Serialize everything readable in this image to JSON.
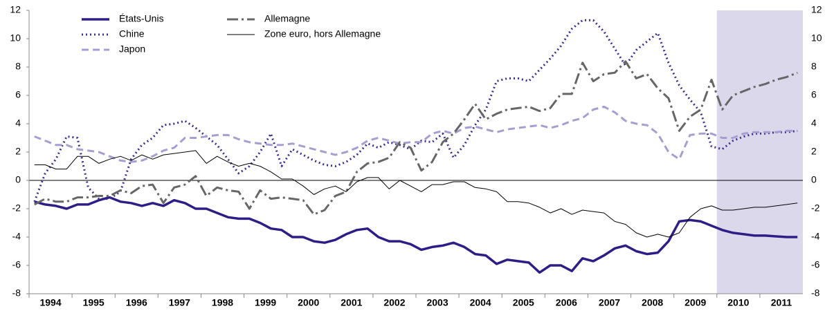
{
  "chart_data": {
    "type": "line",
    "categories": [
      "1994",
      "1995",
      "1996",
      "1997",
      "1998",
      "1999",
      "2000",
      "2001",
      "2002",
      "2003",
      "2004",
      "2005",
      "2006",
      "2007",
      "2008",
      "2009",
      "2010",
      "2011"
    ],
    "ylim": [
      -8,
      12
    ],
    "yticks": [
      -8,
      -6,
      -4,
      -2,
      0,
      2,
      4,
      6,
      8,
      10,
      12
    ],
    "zero_line": true,
    "shaded_category_indices": [
      16,
      17
    ],
    "shade_color": "#dcd8ec",
    "series": [
      {
        "name": "États-Unis",
        "color": "#2e1d86",
        "dash": "solid",
        "width": 3.5,
        "values": [
          [
            -1.5,
            -1.7,
            -1.8,
            -2.0
          ],
          [
            -1.7,
            -1.7,
            -1.4,
            -1.2
          ],
          [
            -1.5,
            -1.6,
            -1.8,
            -1.6
          ],
          [
            -1.8,
            -1.4,
            -1.6,
            -2.0
          ],
          [
            -2.0,
            -2.3,
            -2.6,
            -2.7
          ],
          [
            -2.7,
            -3.0,
            -3.4,
            -3.5
          ],
          [
            -4.0,
            -4.0,
            -4.3,
            -4.4
          ],
          [
            -4.2,
            -3.8,
            -3.5,
            -3.4
          ],
          [
            -4.0,
            -4.3,
            -4.3,
            -4.5
          ],
          [
            -4.9,
            -4.7,
            -4.6,
            -4.4
          ],
          [
            -4.7,
            -5.2,
            -5.3,
            -5.9
          ],
          [
            -5.6,
            -5.7,
            -5.8,
            -6.5
          ],
          [
            -6.0,
            -6.0,
            -6.4,
            -5.5
          ],
          [
            -5.7,
            -5.3,
            -4.8,
            -4.6
          ],
          [
            -5.0,
            -5.2,
            -5.1,
            -4.3
          ],
          [
            -2.9,
            -2.8,
            -2.9,
            -3.2
          ],
          [
            -3.5,
            -3.7,
            -3.8,
            -3.9
          ],
          [
            -3.9,
            -3.95,
            -4.0,
            -4.0
          ]
        ]
      },
      {
        "name": "Chine",
        "color": "#3b2d8f",
        "dash": "dotted",
        "width": 3,
        "values": [
          [
            -1.5,
            0.5,
            1.5,
            3.1
          ],
          [
            3.0,
            -0.5,
            -1.3,
            -1.3
          ],
          [
            -0.8,
            1.5,
            2.5,
            3.0
          ],
          [
            3.9,
            4.0,
            4.2,
            3.7
          ],
          [
            3.1,
            2.5,
            1.5,
            0.5
          ],
          [
            1.0,
            2.0,
            3.3,
            1.0
          ],
          [
            2.2,
            1.8,
            1.4,
            1.1
          ],
          [
            1.0,
            1.3,
            1.8,
            2.6
          ],
          [
            2.3,
            2.7,
            2.5,
            2.2
          ],
          [
            2.8,
            2.7,
            3.3,
            1.6
          ],
          [
            2.5,
            3.9,
            5.0,
            7.0
          ],
          [
            7.2,
            7.2,
            7.0,
            7.8
          ],
          [
            8.6,
            9.5,
            10.7,
            11.3
          ],
          [
            11.3,
            10.5,
            9.3,
            8.1
          ],
          [
            9.2,
            9.8,
            10.4,
            8.3
          ],
          [
            6.7,
            5.7,
            4.8,
            2.4
          ],
          [
            2.2,
            2.8,
            3.1,
            3.3
          ],
          [
            3.3,
            3.4,
            3.4,
            3.5
          ]
        ]
      },
      {
        "name": "Japon",
        "color": "#a59fd0",
        "dash": "dashed",
        "width": 3,
        "values": [
          [
            3.1,
            2.8,
            2.5,
            2.5
          ],
          [
            2.2,
            2.1,
            2.0,
            1.7
          ],
          [
            1.4,
            1.3,
            1.4,
            1.7
          ],
          [
            2.1,
            2.3,
            3.0,
            3.0
          ],
          [
            3.1,
            3.2,
            3.2,
            2.9
          ],
          [
            2.7,
            2.6,
            2.5,
            2.5
          ],
          [
            2.6,
            2.4,
            2.2,
            2.0
          ],
          [
            1.8,
            2.0,
            2.3,
            2.8
          ],
          [
            3.0,
            2.8,
            2.6,
            2.7
          ],
          [
            2.7,
            3.3,
            3.5,
            3.3
          ],
          [
            3.7,
            3.8,
            3.6,
            3.4
          ],
          [
            3.6,
            3.7,
            3.8,
            3.9
          ],
          [
            3.7,
            3.9,
            4.2,
            4.4
          ],
          [
            5.0,
            5.2,
            4.8,
            4.2
          ],
          [
            4.0,
            3.9,
            3.3,
            2.0
          ],
          [
            1.5,
            3.2,
            3.3,
            3.3
          ],
          [
            3.0,
            3.0,
            3.3,
            3.4
          ],
          [
            3.4,
            3.4,
            3.5,
            3.5
          ]
        ]
      },
      {
        "name": "Allemagne",
        "color": "#666666",
        "dash": "dashdot",
        "width": 3,
        "values": [
          [
            -1.7,
            -1.3,
            -1.5,
            -1.5
          ],
          [
            -1.2,
            -1.2,
            -1.1,
            -1.1
          ],
          [
            -0.7,
            -0.9,
            -0.4,
            -0.3
          ],
          [
            -1.6,
            -0.5,
            -0.3,
            0.3
          ],
          [
            -1.1,
            -0.5,
            -0.7,
            -0.8
          ],
          [
            -2.0,
            -0.7,
            -1.3,
            -1.2
          ],
          [
            -1.3,
            -1.4,
            -2.4,
            -2.1
          ],
          [
            -1.1,
            -0.8,
            0.6,
            1.2
          ],
          [
            1.3,
            1.6,
            2.7,
            2.3
          ],
          [
            0.7,
            1.3,
            2.7,
            3.3
          ],
          [
            4.3,
            5.4,
            4.3,
            4.7
          ],
          [
            5.0,
            5.1,
            5.2,
            4.9
          ],
          [
            5.1,
            6.1,
            6.1,
            8.3
          ],
          [
            7.0,
            7.5,
            7.6,
            8.4
          ],
          [
            7.2,
            7.5,
            6.5,
            5.8
          ],
          [
            3.5,
            4.5,
            5.0,
            7.1
          ],
          [
            5.0,
            6.0,
            6.3,
            6.6
          ],
          [
            6.8,
            7.1,
            7.3,
            7.6
          ]
        ]
      },
      {
        "name": "Zone euro, hors Allemagne",
        "color": "#000000",
        "dash": "solid",
        "width": 1,
        "values": [
          [
            1.1,
            1.1,
            0.8,
            0.8
          ],
          [
            1.7,
            1.7,
            1.2,
            1.5
          ],
          [
            1.7,
            1.4,
            1.8,
            1.5
          ],
          [
            1.8,
            1.9,
            2.0,
            2.1
          ],
          [
            1.2,
            1.7,
            1.3,
            1.0
          ],
          [
            1.2,
            1.0,
            0.6,
            0.1
          ],
          [
            0.1,
            -0.4,
            -1.0,
            -0.6
          ],
          [
            -0.4,
            -0.8,
            -0.1,
            0.2
          ],
          [
            0.2,
            -0.6,
            0.0,
            -0.4
          ],
          [
            -0.8,
            -0.3,
            -0.3,
            -0.1
          ],
          [
            -0.1,
            -0.5,
            -0.6,
            -0.8
          ],
          [
            -1.5,
            -1.5,
            -1.6,
            -1.9
          ],
          [
            -2.3,
            -2.0,
            -2.4,
            -2.1
          ],
          [
            -2.2,
            -2.3,
            -2.9,
            -3.1
          ],
          [
            -3.7,
            -4.0,
            -3.8,
            -4.0
          ],
          [
            -3.7,
            -2.6,
            -2.0,
            -1.8
          ],
          [
            -2.1,
            -2.1,
            -2.0,
            -1.9
          ],
          [
            -1.9,
            -1.8,
            -1.7,
            -1.6
          ]
        ]
      }
    ]
  }
}
